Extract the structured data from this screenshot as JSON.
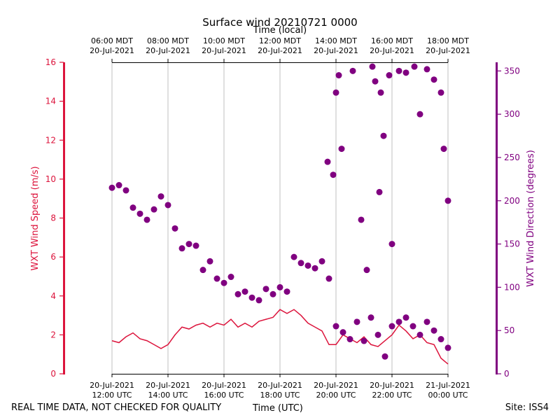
{
  "chart_data": {
    "type": "line+scatter",
    "title": "Surface wind 20210721 0000",
    "top_axis_label": "Time (local)",
    "xlabel": "Time (UTC)",
    "x_range_hours_utc": [
      12,
      24
    ],
    "bottom_ticks": [
      {
        "hour": 12,
        "line1": "20-Jul-2021",
        "line2": "12:00 UTC"
      },
      {
        "hour": 14,
        "line1": "20-Jul-2021",
        "line2": "14:00 UTC"
      },
      {
        "hour": 16,
        "line1": "20-Jul-2021",
        "line2": "16:00 UTC"
      },
      {
        "hour": 18,
        "line1": "20-Jul-2021",
        "line2": "18:00 UTC"
      },
      {
        "hour": 20,
        "line1": "20-Jul-2021",
        "line2": "20:00 UTC"
      },
      {
        "hour": 22,
        "line1": "20-Jul-2021",
        "line2": "22:00 UTC"
      },
      {
        "hour": 24,
        "line1": "21-Jul-2021",
        "line2": "00:00 UTC"
      }
    ],
    "top_ticks": [
      {
        "hour": 12,
        "line1": "06:00 MDT",
        "line2": "20-Jul-2021"
      },
      {
        "hour": 14,
        "line1": "08:00 MDT",
        "line2": "20-Jul-2021"
      },
      {
        "hour": 16,
        "line1": "10:00 MDT",
        "line2": "20-Jul-2021"
      },
      {
        "hour": 18,
        "line1": "12:00 MDT",
        "line2": "20-Jul-2021"
      },
      {
        "hour": 20,
        "line1": "14:00 MDT",
        "line2": "20-Jul-2021"
      },
      {
        "hour": 22,
        "line1": "16:00 MDT",
        "line2": "20-Jul-2021"
      },
      {
        "hour": 24,
        "line1": "18:00 MDT",
        "line2": "20-Jul-2021"
      }
    ],
    "left_axis": {
      "label": "WXT Wind Speed (m/s)",
      "ylim": [
        0,
        16
      ],
      "ticks": [
        0,
        2,
        4,
        6,
        8,
        10,
        12,
        14,
        16
      ],
      "color": "#dc143c"
    },
    "right_axis": {
      "label": "WXT Wind Direction (degrees)",
      "ylim": [
        0,
        360
      ],
      "ticks": [
        0,
        50,
        100,
        150,
        200,
        250,
        300,
        350
      ],
      "color": "#800080"
    },
    "grid": "vertical",
    "series": [
      {
        "name": "WXT Wind Speed",
        "kind": "line",
        "axis": "left",
        "color": "#dc143c",
        "x": [
          12.0,
          12.25,
          12.5,
          12.75,
          13.0,
          13.25,
          13.5,
          13.75,
          14.0,
          14.25,
          14.5,
          14.75,
          15.0,
          15.25,
          15.5,
          15.75,
          16.0,
          16.25,
          16.5,
          16.75,
          17.0,
          17.25,
          17.5,
          17.75,
          18.0,
          18.25,
          18.5,
          18.75,
          19.0,
          19.25,
          19.5,
          19.75,
          20.0,
          20.25,
          20.5,
          20.75,
          21.0,
          21.25,
          21.5,
          21.75,
          22.0,
          22.25,
          22.5,
          22.75,
          23.0,
          23.25,
          23.5,
          23.75,
          24.0
        ],
        "values": [
          1.7,
          1.6,
          1.9,
          2.1,
          1.8,
          1.7,
          1.5,
          1.3,
          1.5,
          2.0,
          2.4,
          2.3,
          2.5,
          2.6,
          2.4,
          2.6,
          2.5,
          2.8,
          2.4,
          2.6,
          2.4,
          2.7,
          2.8,
          2.9,
          3.3,
          3.1,
          3.3,
          3.0,
          2.6,
          2.4,
          2.2,
          1.5,
          1.5,
          2.0,
          1.8,
          1.6,
          1.9,
          1.5,
          1.4,
          1.7,
          2.0,
          2.5,
          2.2,
          1.8,
          2.0,
          1.6,
          1.5,
          0.8,
          0.5
        ]
      },
      {
        "name": "WXT Wind Direction",
        "kind": "scatter",
        "axis": "right",
        "color": "#800080",
        "x": [
          12.0,
          12.25,
          12.5,
          12.75,
          13.0,
          13.25,
          13.5,
          13.75,
          14.0,
          14.25,
          14.5,
          14.75,
          15.0,
          15.25,
          15.5,
          15.75,
          16.0,
          16.25,
          16.5,
          16.75,
          17.0,
          17.25,
          17.5,
          17.75,
          18.0,
          18.25,
          18.5,
          18.75,
          19.0,
          19.25,
          19.5,
          19.75,
          20.0,
          20.25,
          20.5,
          20.75,
          21.0,
          21.25,
          21.5,
          21.75,
          22.0,
          22.25,
          22.5,
          22.75,
          23.0,
          23.25,
          23.5,
          23.75,
          24.0
        ],
        "values": [
          215,
          218,
          212,
          192,
          185,
          178,
          190,
          205,
          195,
          168,
          145,
          150,
          148,
          120,
          130,
          110,
          105,
          112,
          92,
          95,
          88,
          85,
          98,
          92,
          100,
          95,
          135,
          128,
          125,
          122,
          130,
          110,
          55,
          48,
          40,
          60,
          38,
          65,
          45,
          20,
          55,
          60,
          65,
          55,
          45,
          60,
          50,
          40,
          30
        ]
      },
      {
        "name": "WXT Wind Direction (scattered high readings)",
        "kind": "scatter",
        "axis": "right",
        "color": "#800080",
        "x": [
          19.7,
          19.9,
          20.0,
          20.1,
          20.2,
          20.6,
          20.9,
          21.1,
          21.3,
          21.4,
          21.55,
          21.6,
          21.7,
          21.9,
          22.0,
          22.25,
          22.5,
          22.8,
          23.0,
          23.25,
          23.5,
          23.75,
          23.85,
          24.0
        ],
        "values": [
          245,
          230,
          325,
          345,
          260,
          350,
          178,
          120,
          355,
          338,
          210,
          325,
          275,
          345,
          150,
          350,
          348,
          355,
          300,
          352,
          340,
          325,
          260,
          200
        ]
      }
    ]
  },
  "footer": {
    "left": "REAL TIME DATA, NOT CHECKED FOR QUALITY",
    "center": "Time (UTC)",
    "right": "Site: ISS4"
  }
}
